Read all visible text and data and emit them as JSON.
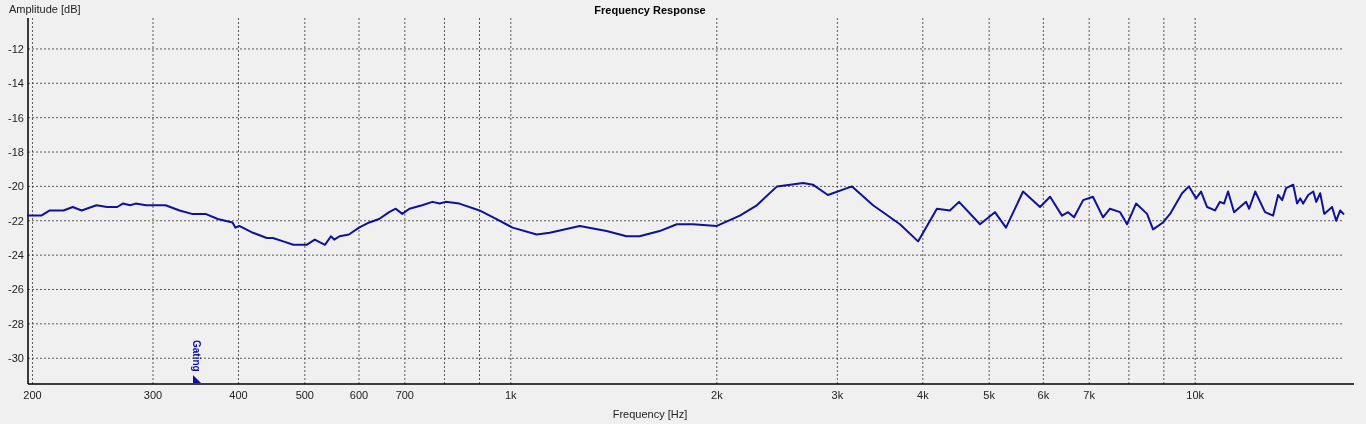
{
  "chart_data": {
    "type": "line",
    "title": "Frequency Response",
    "xlabel": "Frequency [Hz]",
    "ylabel": "Amplitude [dB]",
    "log": "x",
    "grid": true,
    "marker": "none",
    "line_style": "solid",
    "xlim": [
      197,
      16500
    ],
    "ylim": [
      -31.5,
      -10.2
    ],
    "xticks": [
      200,
      300,
      400,
      500,
      600,
      700,
      {
        "value": 800,
        "label": null
      },
      {
        "value": 900,
        "label": null
      },
      {
        "value": 1000,
        "label": "1k"
      },
      {
        "value": 2000,
        "label": "2k"
      },
      {
        "value": 3000,
        "label": "3k"
      },
      {
        "value": 4000,
        "label": "4k"
      },
      {
        "value": 5000,
        "label": "5k"
      },
      {
        "value": 6000,
        "label": "6k"
      },
      {
        "value": 7000,
        "label": "7k"
      },
      {
        "value": 8000,
        "label": null
      },
      {
        "value": 9000,
        "label": null
      },
      {
        "value": 10000,
        "label": "10k"
      }
    ],
    "yticks": [
      -30,
      -28,
      -26,
      -24,
      -22,
      -20,
      -18,
      -16,
      -14,
      -12
    ],
    "annotations": [
      "Gating"
    ],
    "series": [
      {
        "color": "#10109a",
        "x": [
          197,
          206,
          212,
          222,
          229,
          236,
          248,
          257,
          266,
          271,
          278,
          283,
          293,
          313,
          328,
          342,
          358,
          373,
          392,
          396,
          401,
          420,
          440,
          449,
          465,
          481,
          503,
          517,
          535,
          546,
          552,
          562,
          580,
          600,
          621,
          642,
          664,
          679,
          694,
          711,
          742,
          768,
          787,
          803,
          841,
          900,
          953,
          1006,
          1091,
          1140,
          1261,
          1380,
          1476,
          1542,
          1650,
          1748,
          1845,
          2000,
          2161,
          2288,
          2449,
          2675,
          2763,
          2906,
          3152,
          3383,
          3704,
          3936,
          4194,
          4381,
          4518,
          4848,
          5098,
          5291,
          5604,
          5933,
          6138,
          6388,
          6520,
          6653,
          6860,
          7090,
          7334,
          7508,
          7767,
          7953,
          8197,
          8506,
          8678,
          8975,
          9190,
          9569,
          9795,
          10030,
          10200,
          10410,
          10690,
          10870,
          11020,
          11170,
          11400,
          11630,
          11870,
          11990,
          12240,
          12650,
          13000,
          13220,
          13400,
          13580,
          13910,
          14090,
          14240,
          14380,
          14630,
          14880,
          15030,
          15230,
          15440,
          15850,
          16070,
          16290,
          16470
        ],
        "values": [
          -21.7,
          -21.7,
          -21.4,
          -21.4,
          -21.2,
          -21.4,
          -21.1,
          -21.2,
          -21.2,
          -21.0,
          -21.1,
          -21.0,
          -21.1,
          -21.1,
          -21.4,
          -21.6,
          -21.6,
          -21.9,
          -22.1,
          -22.4,
          -22.3,
          -22.7,
          -23.0,
          -23.0,
          -23.2,
          -23.4,
          -23.4,
          -23.1,
          -23.4,
          -22.9,
          -23.1,
          -22.9,
          -22.8,
          -22.4,
          -22.1,
          -21.9,
          -21.5,
          -21.3,
          -21.6,
          -21.3,
          -21.1,
          -20.9,
          -21.0,
          -20.9,
          -21.0,
          -21.4,
          -21.9,
          -22.4,
          -22.8,
          -22.7,
          -22.3,
          -22.6,
          -22.9,
          -22.9,
          -22.6,
          -22.2,
          -22.2,
          -22.3,
          -21.7,
          -21.1,
          -20.0,
          -19.8,
          -19.9,
          -20.5,
          -20.0,
          -21.1,
          -22.2,
          -23.2,
          -21.3,
          -21.4,
          -20.9,
          -22.2,
          -21.5,
          -22.4,
          -20.3,
          -21.2,
          -20.6,
          -21.7,
          -21.5,
          -21.8,
          -20.8,
          -20.6,
          -21.8,
          -21.3,
          -21.5,
          -22.2,
          -21.0,
          -21.6,
          -22.5,
          -22.1,
          -21.6,
          -20.4,
          -20.0,
          -20.7,
          -20.3,
          -21.2,
          -21.4,
          -20.9,
          -21.0,
          -20.3,
          -21.5,
          -21.2,
          -20.9,
          -21.3,
          -20.3,
          -21.5,
          -21.7,
          -20.5,
          -20.8,
          -20.1,
          -19.9,
          -21.0,
          -20.7,
          -21.0,
          -20.5,
          -20.3,
          -20.9,
          -20.4,
          -21.6,
          -21.2,
          -22.0,
          -21.4,
          -21.6
        ]
      }
    ]
  }
}
